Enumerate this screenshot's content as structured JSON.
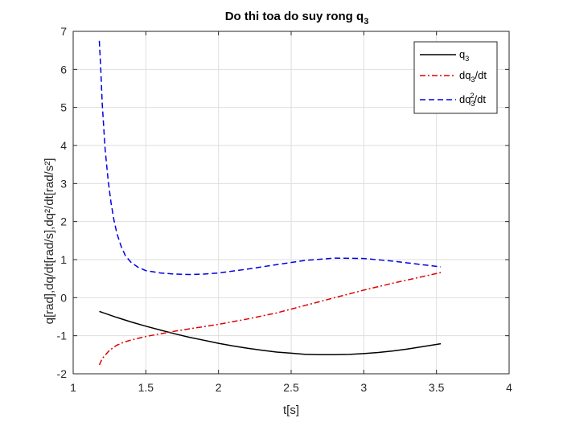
{
  "chart_data": {
    "type": "line",
    "title": "Do thi toa do suy rong q",
    "title_sub": "3",
    "xlabel": "t[s]",
    "ylabel": "q[rad],dq/dt[rad/s],dq²/dt[rad/s²]",
    "xlim": [
      1,
      4
    ],
    "ylim": [
      -2,
      7
    ],
    "xticks": [
      1,
      1.5,
      2,
      2.5,
      3,
      3.5,
      4
    ],
    "yticks": [
      -2,
      -1,
      0,
      1,
      2,
      3,
      4,
      5,
      6,
      7
    ],
    "xtick_labels": [
      "1",
      "1.5",
      "2",
      "2.5",
      "3",
      "3.5",
      "4"
    ],
    "ytick_labels": [
      "-2",
      "-1",
      "0",
      "1",
      "2",
      "3",
      "4",
      "5",
      "6",
      "7"
    ],
    "grid": true,
    "legend_position": "top-right",
    "series": [
      {
        "name": "q3",
        "legend_main": "q",
        "legend_sub": "3",
        "legend_suffix": "",
        "color": "#000000",
        "dash": "solid",
        "x": [
          1.18,
          1.3,
          1.4,
          1.5,
          1.6,
          1.7,
          1.8,
          1.9,
          2.0,
          2.1,
          2.2,
          2.3,
          2.4,
          2.5,
          2.6,
          2.7,
          2.8,
          2.9,
          3.0,
          3.1,
          3.2,
          3.3,
          3.4,
          3.53
        ],
        "values": [
          -0.36,
          -0.52,
          -0.64,
          -0.75,
          -0.85,
          -0.95,
          -1.04,
          -1.12,
          -1.2,
          -1.27,
          -1.33,
          -1.38,
          -1.43,
          -1.46,
          -1.49,
          -1.5,
          -1.5,
          -1.49,
          -1.47,
          -1.44,
          -1.4,
          -1.35,
          -1.29,
          -1.21
        ]
      },
      {
        "name": "dq3/dt",
        "legend_main": "dq",
        "legend_sub": "3",
        "legend_suffix": "/dt",
        "color": "#e00000",
        "dash": "dashdot",
        "x": [
          1.18,
          1.2,
          1.25,
          1.3,
          1.35,
          1.4,
          1.5,
          1.6,
          1.7,
          1.8,
          1.9,
          2.0,
          2.2,
          2.4,
          2.6,
          2.8,
          3.0,
          3.2,
          3.4,
          3.53
        ],
        "values": [
          -1.77,
          -1.6,
          -1.38,
          -1.25,
          -1.17,
          -1.11,
          -1.02,
          -0.95,
          -0.88,
          -0.82,
          -0.76,
          -0.7,
          -0.56,
          -0.4,
          -0.2,
          0.0,
          0.2,
          0.38,
          0.55,
          0.66
        ]
      },
      {
        "name": "dq3²/dt",
        "legend_main": "dq",
        "legend_sub": "3",
        "legend_sup": "2",
        "legend_suffix": "/dt",
        "color": "#0000e0",
        "dash": "dashed",
        "x": [
          1.18,
          1.19,
          1.2,
          1.22,
          1.24,
          1.26,
          1.28,
          1.3,
          1.33,
          1.36,
          1.4,
          1.45,
          1.5,
          1.6,
          1.7,
          1.8,
          1.9,
          2.0,
          2.2,
          2.4,
          2.6,
          2.8,
          3.0,
          3.2,
          3.4,
          3.53
        ],
        "values": [
          6.75,
          6.0,
          5.1,
          3.9,
          3.1,
          2.5,
          2.05,
          1.7,
          1.35,
          1.1,
          0.92,
          0.79,
          0.71,
          0.65,
          0.62,
          0.61,
          0.62,
          0.65,
          0.75,
          0.87,
          0.98,
          1.04,
          1.03,
          0.96,
          0.87,
          0.81
        ]
      }
    ]
  }
}
